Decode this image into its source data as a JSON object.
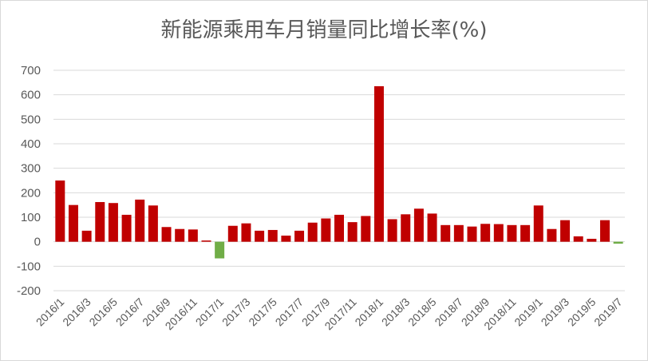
{
  "chart_data": {
    "type": "bar",
    "title": "新能源乘用车月销量同比增长率(%)",
    "xlabel": "",
    "ylabel": "",
    "ylim": [
      -200,
      700
    ],
    "yticks": [
      700,
      600,
      500,
      400,
      300,
      200,
      100,
      0,
      -100,
      -200
    ],
    "grid": true,
    "colors": {
      "positive": "#c00000",
      "negative": "#70ad47"
    },
    "x_tick_labels": [
      "2016/1",
      "2016/3",
      "2016/5",
      "2016/7",
      "2016/9",
      "2016/11",
      "2017/1",
      "2017/3",
      "2017/5",
      "2017/7",
      "2017/9",
      "2017/11",
      "2018/1",
      "2018/3",
      "2018/5",
      "2018/7",
      "2018/9",
      "2018/11",
      "2019/1",
      "2019/3",
      "2019/5",
      "2019/7"
    ],
    "categories": [
      "2016/1",
      "2016/2",
      "2016/3",
      "2016/4",
      "2016/5",
      "2016/6",
      "2016/7",
      "2016/8",
      "2016/9",
      "2016/10",
      "2016/11",
      "2016/12",
      "2017/1",
      "2017/2",
      "2017/3",
      "2017/4",
      "2017/5",
      "2017/6",
      "2017/7",
      "2017/8",
      "2017/9",
      "2017/10",
      "2017/11",
      "2017/12",
      "2018/1",
      "2018/2",
      "2018/3",
      "2018/4",
      "2018/5",
      "2018/6",
      "2018/7",
      "2018/8",
      "2018/9",
      "2018/10",
      "2018/11",
      "2018/12",
      "2019/1",
      "2019/2",
      "2019/3",
      "2019/4",
      "2019/5",
      "2019/6",
      "2019/7"
    ],
    "values": [
      250,
      150,
      45,
      162,
      158,
      110,
      172,
      148,
      60,
      52,
      50,
      5,
      -68,
      65,
      75,
      45,
      48,
      25,
      45,
      78,
      95,
      110,
      80,
      105,
      635,
      92,
      112,
      135,
      115,
      68,
      68,
      62,
      73,
      72,
      68,
      68,
      148,
      52,
      88,
      22,
      12,
      88,
      -8
    ]
  }
}
